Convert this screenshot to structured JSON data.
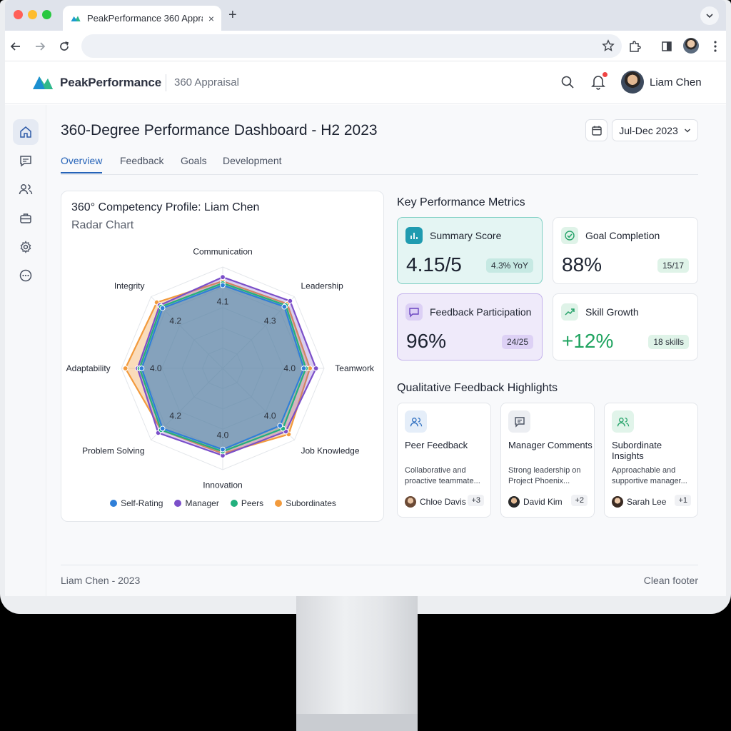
{
  "browser": {
    "tab_title": "PeakPerformance 360 Apprai",
    "tab_close": "×",
    "new_tab": "+"
  },
  "header": {
    "brand": "PeakPerformance",
    "app_name": "360 Appraisal",
    "user_name": "Liam Chen"
  },
  "sidebar": {
    "items": [
      {
        "name": "home-icon",
        "active": true
      },
      {
        "name": "chat-icon",
        "active": false
      },
      {
        "name": "users-icon",
        "active": false
      },
      {
        "name": "briefcase-icon",
        "active": false
      },
      {
        "name": "gear-icon",
        "active": false
      },
      {
        "name": "more-icon",
        "active": false
      }
    ]
  },
  "page": {
    "title": "360-Degree Performance Dashboard - H2 2023",
    "date_range": "Jul-Dec 2023",
    "tabs": [
      "Overview",
      "Feedback",
      "Goals",
      "Development"
    ],
    "active_tab": "Overview"
  },
  "radar": {
    "title": "360° Competency Profile: Liam Chen",
    "subtitle": "Radar Chart"
  },
  "chart_data": {
    "type": "radar",
    "categories": [
      "Communication",
      "Leadership",
      "Teamwork",
      "Job Knowledge",
      "Innovation",
      "Problem Solving",
      "Adaptability",
      "Integrity"
    ],
    "rlim": [
      0,
      5
    ],
    "series": [
      {
        "name": "Self-Rating",
        "color": "#2f7fd8",
        "values": [
          4.1,
          4.3,
          4.0,
          4.0,
          4.0,
          4.2,
          4.0,
          4.2
        ]
      },
      {
        "name": "Manager",
        "color": "#7b4fc9",
        "values": [
          4.5,
          4.7,
          4.6,
          4.4,
          4.3,
          4.5,
          4.2,
          4.4
        ]
      },
      {
        "name": "Peers",
        "color": "#22b07d",
        "values": [
          4.2,
          4.4,
          4.1,
          4.2,
          4.1,
          4.3,
          4.1,
          4.3
        ]
      },
      {
        "name": "Subordinates",
        "color": "#f29a3c",
        "values": [
          4.3,
          4.5,
          4.3,
          4.6,
          4.2,
          4.3,
          4.8,
          4.6
        ]
      }
    ],
    "data_labels": [
      {
        "category": "Communication",
        "text": "4.1"
      },
      {
        "category": "Leadership",
        "text": "4.3"
      },
      {
        "category": "Teamwork",
        "text": "4.0"
      },
      {
        "category": "Job Knowledge",
        "text": "4.0"
      },
      {
        "category": "Innovation",
        "text": "4.0"
      },
      {
        "category": "Problem Solving",
        "text": "4.2"
      },
      {
        "category": "Adaptability",
        "text": "4.0"
      },
      {
        "category": "Integrity",
        "text": "4.2"
      }
    ],
    "legend_position": "bottom"
  },
  "metrics": {
    "title": "Key Performance Metrics",
    "cards": [
      {
        "label": "Summary Score",
        "value": "4.15/5",
        "badge": "4.3% YoY"
      },
      {
        "label": "Goal Completion",
        "value": "88%",
        "badge": "15/17"
      },
      {
        "label": "Feedback Participation",
        "value": "96%",
        "badge": "24/25"
      },
      {
        "label": "Skill Growth",
        "value": "+12%",
        "badge": "18 skills"
      }
    ]
  },
  "feedback": {
    "title": "Qualitative Feedback Highlights",
    "cards": [
      {
        "title": "Peer Feedback",
        "text": "Collaborative and proactive teammate...",
        "person": "Chloe Davis",
        "more": "+3"
      },
      {
        "title": "Manager Comments",
        "text": "Strong leadership on Project Phoenix...",
        "person": "David Kim",
        "more": "+2"
      },
      {
        "title": "Subordinate Insights",
        "text": "Approachable and supportive manager...",
        "person": "Sarah Lee",
        "more": "+1"
      }
    ]
  },
  "footer": {
    "left": "Liam Chen - 2023",
    "right": "Clean footer"
  },
  "colors": {
    "accent": "#2563b8",
    "growth_green": "#1ea35f"
  }
}
